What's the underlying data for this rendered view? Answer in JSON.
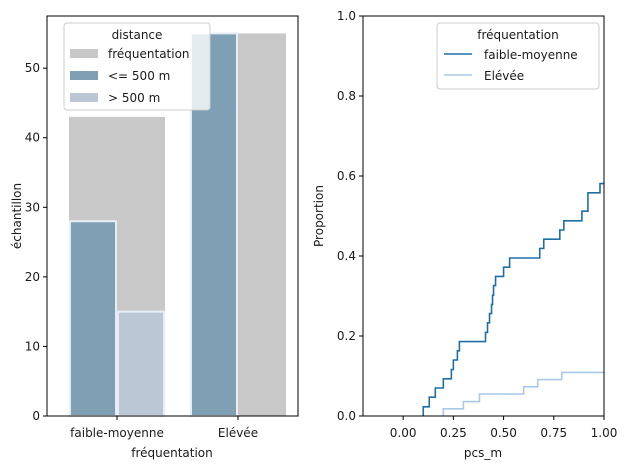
{
  "colors": {
    "frequentation_bar": "#c8c8c8",
    "near_bar": "#7f9fb5",
    "far_bar": "#bcc7d5",
    "bar_edge": "#e6eef5",
    "line_faible": "#1f6fa5",
    "line_elevee": "#a9c9e6"
  },
  "chart_data": [
    {
      "type": "bar",
      "categories": [
        "faible-moyenne",
        "Elévée"
      ],
      "series": [
        {
          "name": "fréquentation",
          "values": [
            43,
            55
          ]
        },
        {
          "name": "<= 500 m",
          "values": [
            28,
            55
          ]
        },
        {
          "name": "> 500 m",
          "values": [
            15,
            0
          ]
        }
      ],
      "xlabel": "fréquentation",
      "ylabel": "échantillon",
      "ylim": [
        0,
        57.5
      ],
      "yticks": [
        0,
        10,
        20,
        30,
        40,
        50
      ],
      "legend": {
        "title": "distance",
        "position": "top-left"
      }
    },
    {
      "type": "line",
      "subtype": "ecdf-step",
      "xlabel": "pcs_m",
      "ylabel": "Proportion",
      "xlim": [
        -0.2,
        1.0
      ],
      "ylim": [
        0,
        1.0
      ],
      "xticks": [
        "0.00",
        "0.25",
        "0.50",
        "0.75",
        "1.00"
      ],
      "yticks": [
        "0.0",
        "0.2",
        "0.4",
        "0.6",
        "0.8",
        "1.0"
      ],
      "legend": {
        "title": "fréquentation",
        "position": "top-right"
      },
      "series": [
        {
          "name": "faible-moyenne",
          "points": [
            [
              0.1,
              0.023
            ],
            [
              0.13,
              0.047
            ],
            [
              0.16,
              0.07
            ],
            [
              0.2,
              0.093
            ],
            [
              0.24,
              0.116
            ],
            [
              0.25,
              0.14
            ],
            [
              0.27,
              0.163
            ],
            [
              0.28,
              0.186
            ],
            [
              0.35,
              0.186
            ],
            [
              0.4,
              0.186
            ],
            [
              0.41,
              0.209
            ],
            [
              0.42,
              0.233
            ],
            [
              0.43,
              0.256
            ],
            [
              0.44,
              0.279
            ],
            [
              0.445,
              0.302
            ],
            [
              0.45,
              0.326
            ],
            [
              0.46,
              0.349
            ],
            [
              0.5,
              0.372
            ],
            [
              0.53,
              0.395
            ],
            [
              0.68,
              0.419
            ],
            [
              0.7,
              0.442
            ],
            [
              0.78,
              0.465
            ],
            [
              0.8,
              0.488
            ],
            [
              0.89,
              0.512
            ],
            [
              0.92,
              0.558
            ],
            [
              0.98,
              0.581
            ],
            [
              1.0,
              0.581
            ]
          ]
        },
        {
          "name": "Elévée",
          "points": [
            [
              0.2,
              0.018
            ],
            [
              0.3,
              0.036
            ],
            [
              0.38,
              0.055
            ],
            [
              0.6,
              0.073
            ],
            [
              0.67,
              0.091
            ],
            [
              0.79,
              0.109
            ],
            [
              1.0,
              0.109
            ]
          ]
        }
      ]
    }
  ]
}
